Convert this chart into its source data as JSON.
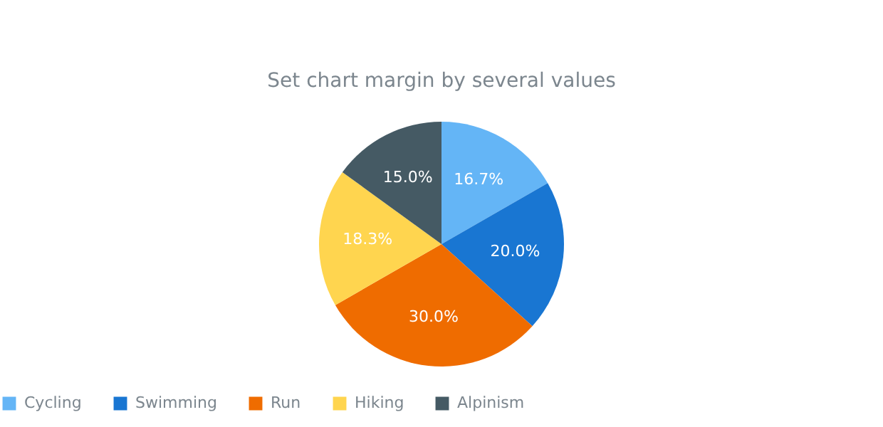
{
  "chart_data": {
    "type": "pie",
    "title": "Set chart margin by several values",
    "categories": [
      "Cycling",
      "Swimming",
      "Run",
      "Hiking",
      "Alpinism"
    ],
    "values": [
      16.7,
      20,
      30,
      18.3,
      15
    ],
    "colors": [
      "#64b5f6",
      "#1976d2",
      "#ef6c00",
      "#ffd54f",
      "#455a64"
    ],
    "value_labels": [
      "16.7%",
      "20.0%",
      "30.0%",
      "18.3%",
      "15.0%"
    ],
    "legend": "bottom"
  }
}
